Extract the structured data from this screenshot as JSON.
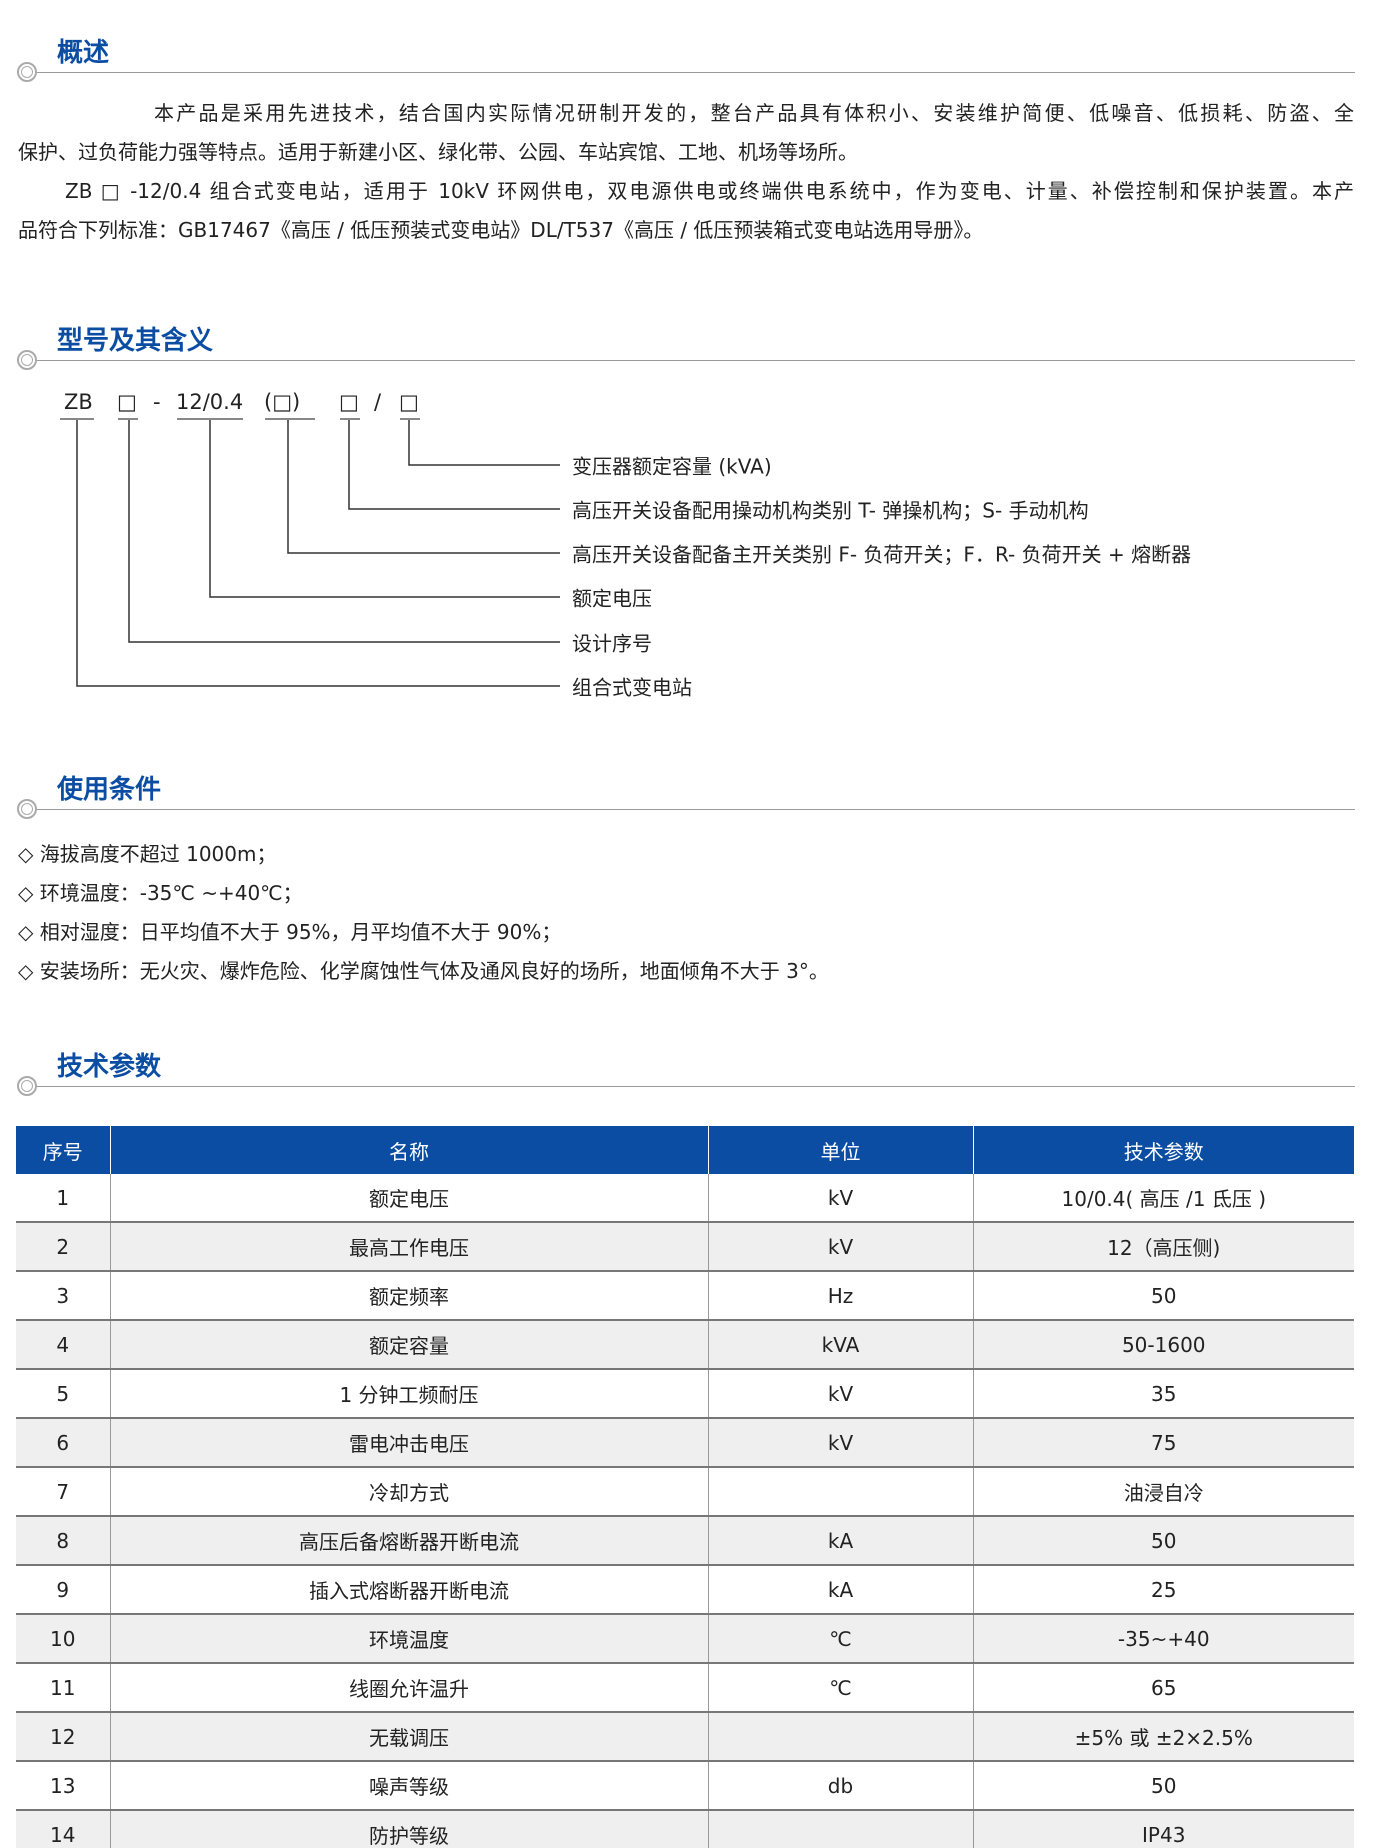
{
  "sections": {
    "overview": "概述",
    "model": "型号及其含义",
    "conditions": "使用条件",
    "params": "技术参数"
  },
  "overview": {
    "p1": "本产品是采用先进技术，结合国内实际情况研制开发的，整台产品具有体积小、安装维护简便、低噪音、低损耗、防盗、全",
    "p1b": "保护、过负荷能力强等特点。适用于新建小区、绿化带、公园、车站宾馆、工地、机场等场所。",
    "p2": "ZB □ -12/0.4 组合式变电站，适用于 10kV 环网供电，双电源供电或终端供电系统中，作为变电、计量、补偿控制和保护装置。本产",
    "p2b": "品符合下列标准：GB17467《高压 / 低压预装式变电站》DL/T537《高压 / 低压预装箱式变电站选用导册》。"
  },
  "model": {
    "codes": [
      "ZB",
      "□",
      "-",
      "12/0.4",
      "(□)",
      "□",
      "/",
      "□"
    ],
    "labels": [
      "变压器额定容量 (kVA)",
      "高压开关设备配用操动机构类别 T- 弹操机构；S- 手动机构",
      "高压开关设备配备主开关类别 F- 负荷开关；F．R- 负荷开关 + 熔断器",
      "额定电压",
      "设计序号",
      "组合式变电站"
    ]
  },
  "conditions": [
    "◇ 海拔高度不超过 1000m；",
    "◇ 环境温度：-35℃ ~+40℃；",
    "◇ 相对湿度：日平均值不大于 95%，月平均值不大于 90%；",
    "◇ 安装场所：无火灾、爆炸危险、化学腐蚀性气体及通风良好的场所，地面倾角不大于 3°。"
  ],
  "table": {
    "headers": [
      "序号",
      "名称",
      "单位",
      "技术参数"
    ],
    "rows": [
      [
        "1",
        "额定电压",
        "kV",
        "10/0.4( 高压 /1 氐压 )"
      ],
      [
        "2",
        "最高工作电压",
        "kV",
        "12（高压侧)"
      ],
      [
        "3",
        "额定频率",
        "Hz",
        "50"
      ],
      [
        "4",
        "额定容量",
        "kVA",
        "50-1600"
      ],
      [
        "5",
        "1 分钟工频耐压",
        "kV",
        "35"
      ],
      [
        "6",
        "雷电冲击电压",
        "kV",
        "75"
      ],
      [
        "7",
        "冷却方式",
        "",
        "油浸自冷"
      ],
      [
        "8",
        "高压后备熔断器开断电流",
        "kA",
        "50"
      ],
      [
        "9",
        "插入式熔断器开断电流",
        "kA",
        "25"
      ],
      [
        "10",
        "环境温度",
        "℃",
        "-35~+40"
      ],
      [
        "11",
        "线圈允许温升",
        "℃",
        "65"
      ],
      [
        "12",
        "无载调压",
        "",
        "±5% 或 ±2×2.5%"
      ],
      [
        "13",
        "噪声等级",
        "db",
        "50"
      ],
      [
        "14",
        "防护等级",
        "",
        "IP43"
      ]
    ]
  },
  "colors": {
    "accent": "#0b4da2"
  }
}
